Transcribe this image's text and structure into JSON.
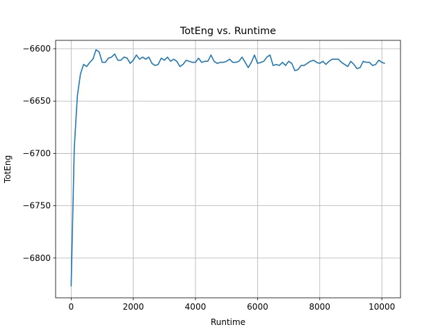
{
  "chart_data": {
    "type": "line",
    "title": "TotEng vs. Runtime",
    "xlabel": "Runtime",
    "ylabel": "TotEng",
    "xlim": [
      -500,
      10600
    ],
    "ylim": [
      -6838,
      -6592
    ],
    "xticks": [
      0,
      2000,
      4000,
      6000,
      8000,
      10000
    ],
    "yticks": [
      -6800,
      -6750,
      -6700,
      -6650,
      -6600
    ],
    "xtick_labels": [
      "0",
      "2000",
      "4000",
      "6000",
      "8000",
      "10000"
    ],
    "ytick_labels": [
      "−6800",
      "−6750",
      "−6700",
      "−6650",
      "−6600"
    ],
    "grid": true,
    "series": [
      {
        "color": "#1f77b4",
        "x": [
          0,
          100,
          200,
          300,
          400,
          500,
          600,
          700,
          800,
          900,
          1000,
          1100,
          1200,
          1300,
          1400,
          1500,
          1600,
          1700,
          1800,
          1900,
          2000,
          2100,
          2200,
          2300,
          2400,
          2500,
          2600,
          2700,
          2800,
          2900,
          3000,
          3100,
          3200,
          3300,
          3400,
          3500,
          3600,
          3700,
          3800,
          3900,
          4000,
          4100,
          4200,
          4300,
          4400,
          4500,
          4600,
          4700,
          4800,
          4900,
          5000,
          5100,
          5200,
          5300,
          5400,
          5500,
          5600,
          5700,
          5800,
          5900,
          6000,
          6100,
          6200,
          6300,
          6400,
          6500,
          6600,
          6700,
          6800,
          6900,
          7000,
          7100,
          7200,
          7300,
          7400,
          7500,
          7600,
          7700,
          7800,
          7900,
          8000,
          8100,
          8200,
          8300,
          8400,
          8500,
          8600,
          8700,
          8800,
          8900,
          9000,
          9100,
          9200,
          9300,
          9400,
          9500,
          9600,
          9700,
          9800,
          9900,
          10000,
          10100
        ],
        "y": [
          -6827,
          -6695,
          -6645,
          -6624,
          -6615,
          -6617,
          -6613,
          -6610,
          -6601,
          -6603,
          -6613,
          -6613,
          -6609,
          -6608,
          -6605,
          -6611,
          -6611,
          -6608,
          -6609,
          -6614,
          -6611,
          -6606,
          -6610,
          -6608,
          -6610,
          -6608,
          -6614,
          -6616,
          -6615,
          -6609,
          -6611,
          -6608,
          -6612,
          -6610,
          -6612,
          -6617,
          -6615,
          -6611,
          -6612,
          -6613,
          -6613,
          -6609,
          -6613,
          -6612,
          -6612,
          -6606,
          -6612,
          -6614,
          -6613,
          -6613,
          -6612,
          -6610,
          -6613,
          -6613,
          -6612,
          -6608,
          -6613,
          -6618,
          -6613,
          -6606,
          -6614,
          -6613,
          -6612,
          -6608,
          -6606,
          -6616,
          -6615,
          -6616,
          -6613,
          -6616,
          -6612,
          -6614,
          -6621,
          -6620,
          -6616,
          -6616,
          -6614,
          -6612,
          -6611,
          -6613,
          -6614,
          -6612,
          -6615,
          -6612,
          -6610,
          -6610,
          -6610,
          -6613,
          -6615,
          -6617,
          -6612,
          -6615,
          -6619,
          -6618,
          -6612,
          -6613,
          -6613,
          -6616,
          -6615,
          -6611,
          -6613,
          -6614
        ]
      }
    ]
  }
}
